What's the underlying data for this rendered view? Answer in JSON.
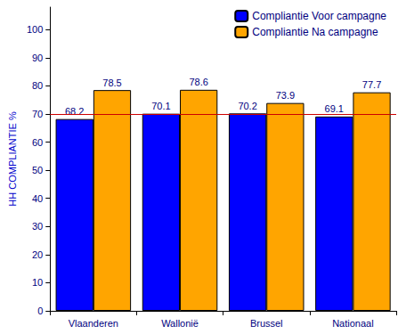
{
  "chart_data": {
    "type": "bar",
    "y_label": "HH COMPLIANTIE %",
    "categories": [
      "Vlaanderen",
      "Wallonië",
      "Brussel",
      "Nationaal"
    ],
    "series": [
      {
        "name": "Compliantie Voor campagne",
        "color": "#0000ff",
        "values": [
          68.2,
          70.1,
          70.2,
          69.1
        ]
      },
      {
        "name": "Compliantie Na campagne",
        "color": "#ffa500",
        "values": [
          78.5,
          78.6,
          73.9,
          77.7
        ]
      }
    ],
    "ylim": [
      0,
      108
    ],
    "yticks": [
      0,
      10,
      20,
      30,
      40,
      50,
      60,
      70,
      80,
      90,
      100
    ],
    "reference_line": {
      "value": 70,
      "color": "#cc0000"
    },
    "grid": false,
    "legend": "upper right",
    "data_labels": true
  }
}
